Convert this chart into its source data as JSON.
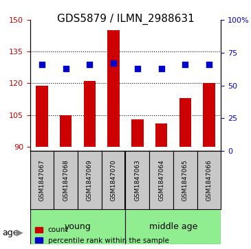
{
  "title": "GDS5879 / ILMN_2988631",
  "samples": [
    "GSM1847067",
    "GSM1847068",
    "GSM1847069",
    "GSM1847070",
    "GSM1847063",
    "GSM1847064",
    "GSM1847065",
    "GSM1847066"
  ],
  "count_values": [
    119,
    105,
    121,
    145,
    103,
    101,
    113,
    120
  ],
  "percentile_values": [
    66,
    63,
    66,
    67,
    63,
    63,
    66,
    66
  ],
  "groups": [
    {
      "label": "young",
      "start": 0,
      "end": 4,
      "color": "#90EE90"
    },
    {
      "label": "middle age",
      "start": 4,
      "end": 8,
      "color": "#90EE90"
    }
  ],
  "ylim_left": [
    88,
    150
  ],
  "ylim_right": [
    0,
    100
  ],
  "yticks_left": [
    90,
    105,
    120,
    135,
    150
  ],
  "yticks_right": [
    0,
    25,
    50,
    75,
    100
  ],
  "yticklabels_right": [
    "0",
    "25",
    "50",
    "75",
    "100%"
  ],
  "bar_color": "#CC0000",
  "dot_color": "#0000CC",
  "bar_bottom": 90,
  "grid_color": "black",
  "age_label": "age",
  "legend_count_label": "count",
  "legend_percentile_label": "percentile rank within the sample",
  "label_fontsize": 9,
  "tick_fontsize": 8,
  "title_fontsize": 11,
  "group_label_fontsize": 9
}
